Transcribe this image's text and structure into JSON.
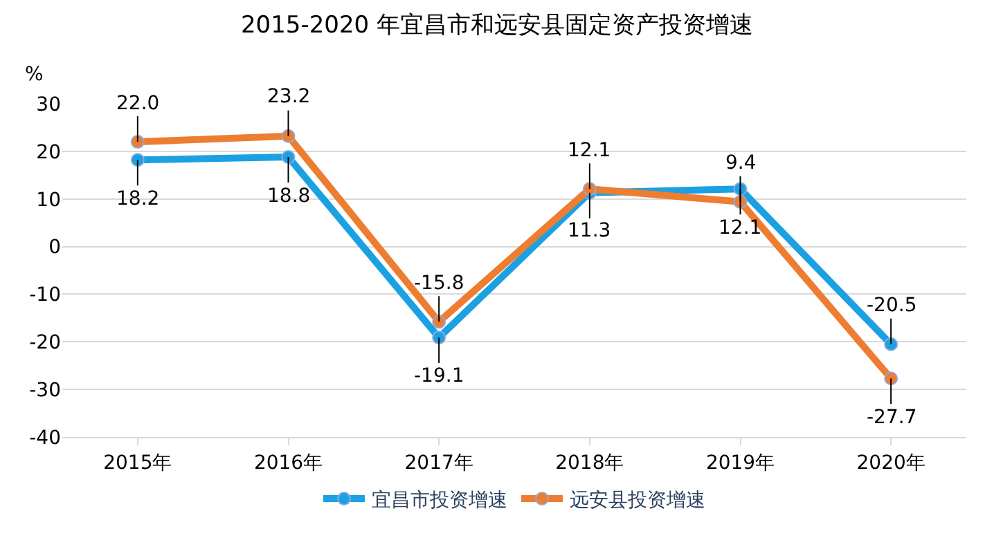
{
  "chart_data": {
    "type": "line",
    "title": "2015-2020 年宜昌市和远安县固定资产投资增速",
    "ylabel": "%",
    "categories": [
      "2015年",
      "2016年",
      "2017年",
      "2018年",
      "2019年",
      "2020年"
    ],
    "series": [
      {
        "name": "宜昌市投资增速",
        "color": "#1ba1e2",
        "values": [
          18.2,
          18.8,
          -19.1,
          11.3,
          12.1,
          -20.5
        ],
        "value_labels": [
          "18.2",
          "18.8",
          "-19.1",
          "11.3",
          "12.1",
          "-20.5"
        ]
      },
      {
        "name": "远安县投资增速",
        "color": "#ed7d31",
        "values": [
          22.0,
          23.2,
          -15.8,
          12.1,
          9.4,
          -27.7
        ],
        "value_labels": [
          "22.0",
          "23.2",
          "-15.8",
          "12.1",
          "9.4",
          "-27.7"
        ]
      }
    ],
    "ylim": [
      -40,
      30
    ],
    "yticks": [
      -40,
      -30,
      -20,
      -10,
      0,
      10,
      20,
      30
    ],
    "grid": "y",
    "legend": "bottom",
    "marker": "circle",
    "line_style": "solid"
  }
}
